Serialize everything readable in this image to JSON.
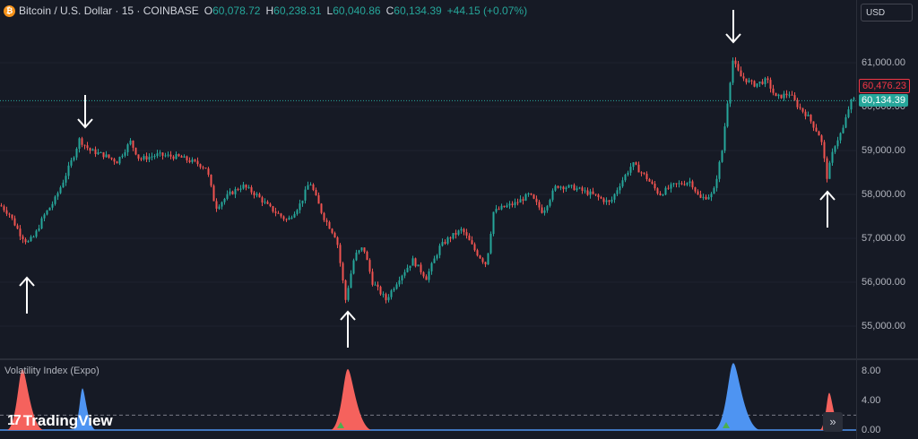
{
  "legend": {
    "symbol": "Bitcoin / U.S. Dollar · 15 · COINBASE",
    "o_key": "O",
    "o_val": "60,078.72",
    "h_key": "H",
    "h_val": "60,238.31",
    "l_key": "L",
    "l_val": "60,040.86",
    "c_key": "C",
    "c_val": "60,134.39",
    "change": "+44.15 (+0.07%)"
  },
  "currency": "USD",
  "price_axis": {
    "ticks": [
      "61,000.00",
      "60,000.00",
      "59,000.00",
      "58,000.00",
      "57,000.00",
      "56,000.00",
      "55,000.00"
    ],
    "high_tag": "60,476.23",
    "last_tag": "60,134.39"
  },
  "indicator": {
    "title": "Volatility Index (Expo)",
    "ticks": [
      "8.00",
      "4.00",
      "0.00"
    ]
  },
  "watermark": {
    "text": "TradingView"
  },
  "icons": {
    "currency": "btc-icon",
    "logo": "tradingview-logo-icon",
    "scroll": "double-chevron-right-icon",
    "arrows": "arrow-annotation-icon"
  },
  "colors": {
    "up": "#26a69a",
    "down": "#ef5350",
    "spike_red": "#f5625d",
    "spike_blue": "#4e94f2",
    "background": "#161a25"
  },
  "chart_data": {
    "type": "candlestick",
    "price_ticks": [
      61000,
      60000,
      59000,
      58000,
      57000,
      56000,
      55000
    ],
    "last_price": 60134.39,
    "high_marker": 60476.23,
    "anchors": [
      [
        0,
        57750
      ],
      [
        10,
        57550
      ],
      [
        22,
        57100
      ],
      [
        30,
        56900
      ],
      [
        38,
        57050
      ],
      [
        48,
        57500
      ],
      [
        60,
        57850
      ],
      [
        70,
        58300
      ],
      [
        82,
        58900
      ],
      [
        88,
        59250
      ],
      [
        100,
        59000
      ],
      [
        115,
        58900
      ],
      [
        130,
        58750
      ],
      [
        145,
        59200
      ],
      [
        155,
        58800
      ],
      [
        175,
        58900
      ],
      [
        200,
        58850
      ],
      [
        220,
        58700
      ],
      [
        230,
        58600
      ],
      [
        240,
        57700
      ],
      [
        255,
        58000
      ],
      [
        270,
        58200
      ],
      [
        285,
        58000
      ],
      [
        300,
        57700
      ],
      [
        320,
        57400
      ],
      [
        335,
        57800
      ],
      [
        345,
        58300
      ],
      [
        360,
        57500
      ],
      [
        375,
        57000
      ],
      [
        385,
        55600
      ],
      [
        395,
        56600
      ],
      [
        405,
        56800
      ],
      [
        415,
        56000
      ],
      [
        430,
        55600
      ],
      [
        445,
        56100
      ],
      [
        460,
        56500
      ],
      [
        475,
        56100
      ],
      [
        490,
        56800
      ],
      [
        500,
        57000
      ],
      [
        515,
        57200
      ],
      [
        530,
        56700
      ],
      [
        542,
        56400
      ],
      [
        550,
        57600
      ],
      [
        560,
        57700
      ],
      [
        575,
        57800
      ],
      [
        590,
        58000
      ],
      [
        605,
        57600
      ],
      [
        620,
        58200
      ],
      [
        640,
        58150
      ],
      [
        660,
        58000
      ],
      [
        680,
        57800
      ],
      [
        690,
        58200
      ],
      [
        705,
        58700
      ],
      [
        720,
        58400
      ],
      [
        735,
        58000
      ],
      [
        750,
        58200
      ],
      [
        770,
        58300
      ],
      [
        780,
        57900
      ],
      [
        795,
        58000
      ],
      [
        805,
        59000
      ],
      [
        812,
        60300
      ],
      [
        817,
        61050
      ],
      [
        825,
        60700
      ],
      [
        840,
        60500
      ],
      [
        855,
        60600
      ],
      [
        865,
        60200
      ],
      [
        880,
        60300
      ],
      [
        890,
        60000
      ],
      [
        900,
        59800
      ],
      [
        915,
        59300
      ],
      [
        922,
        58400
      ],
      [
        930,
        59100
      ],
      [
        940,
        59500
      ],
      [
        948,
        60100
      ],
      [
        955,
        60200
      ]
    ],
    "annotations": [
      {
        "x": 30,
        "direction": "up"
      },
      {
        "x": 95,
        "direction": "down"
      },
      {
        "x": 388,
        "direction": "up"
      },
      {
        "x": 818,
        "direction": "down"
      },
      {
        "x": 923,
        "direction": "up"
      }
    ],
    "volatility_index": {
      "y_range": [
        0,
        9
      ],
      "threshold": 2.0,
      "spikes": [
        {
          "x": 25,
          "peak": 8.2,
          "color": "red",
          "width": 8
        },
        {
          "x": 92,
          "peak": 5.6,
          "color": "blue",
          "width": 5
        },
        {
          "x": 388,
          "peak": 8.2,
          "color": "red",
          "width": 9
        },
        {
          "x": 818,
          "peak": 9.0,
          "color": "blue",
          "width": 10
        },
        {
          "x": 925,
          "peak": 5.0,
          "color": "red",
          "width": 5
        }
      ],
      "markers": [
        {
          "x": 380
        },
        {
          "x": 810
        }
      ]
    }
  }
}
